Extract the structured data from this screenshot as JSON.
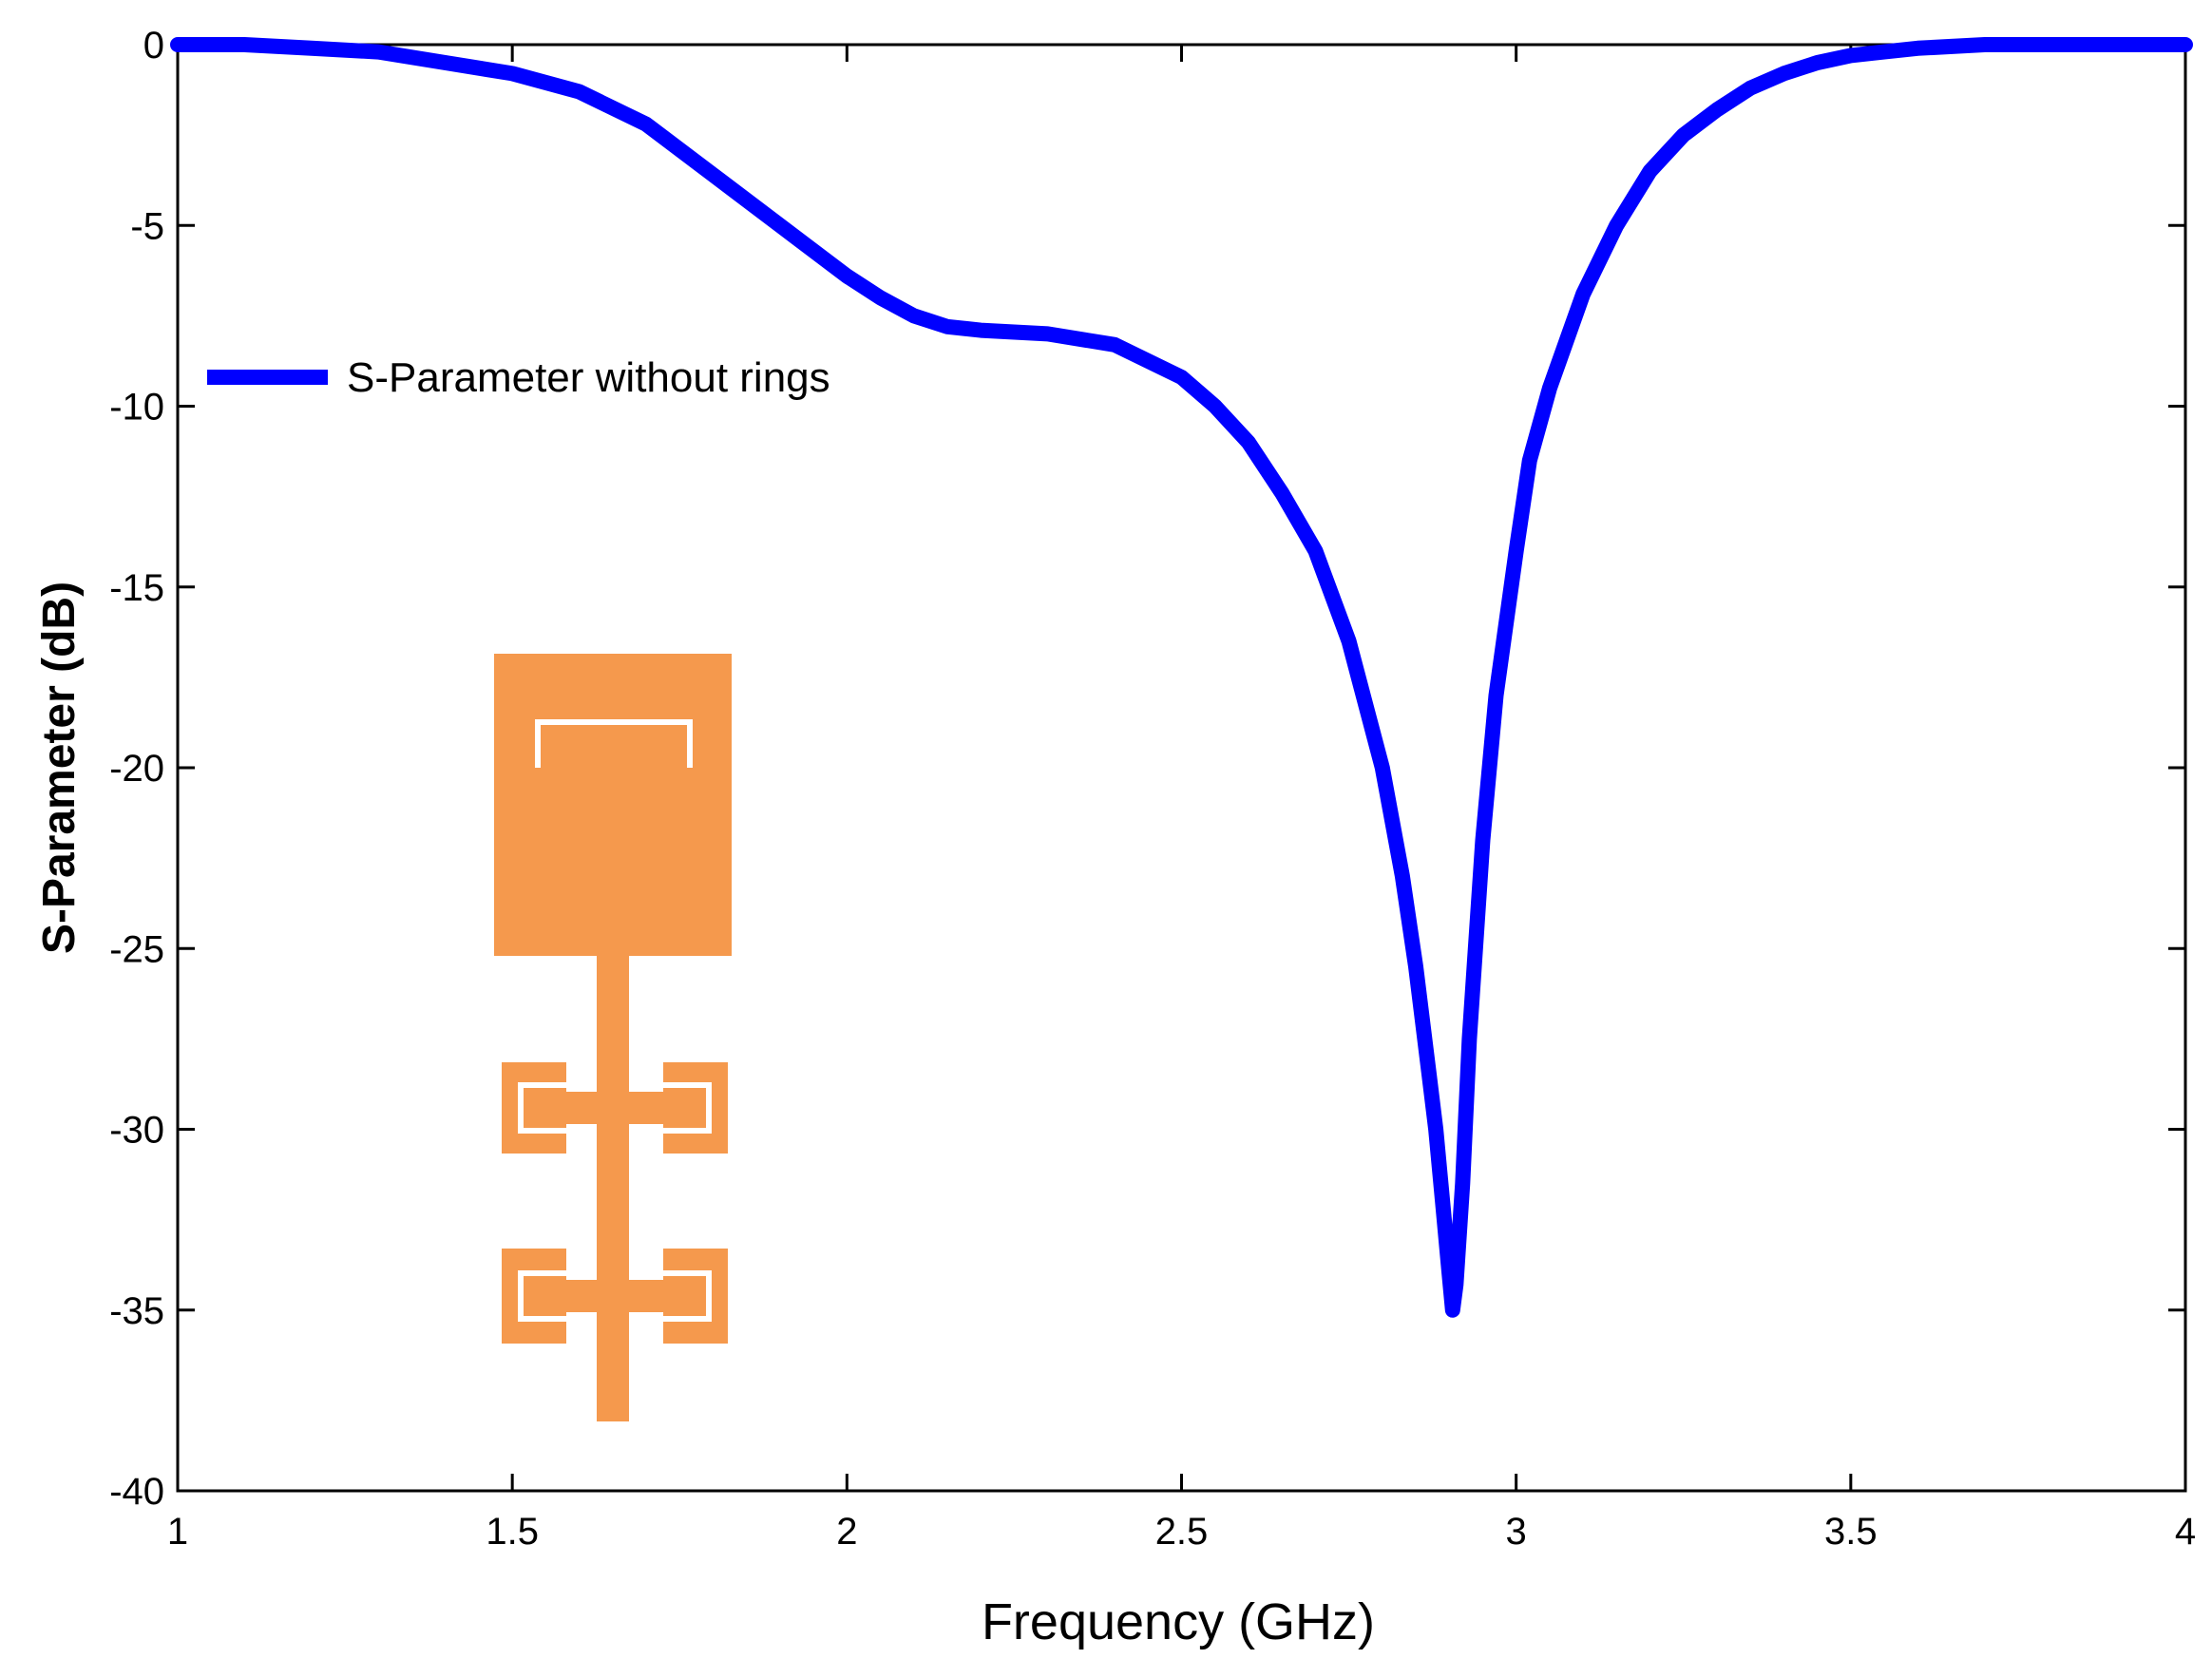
{
  "chart_data": {
    "type": "line",
    "title": "",
    "xlabel": "Frequency (GHz)",
    "ylabel": "S-Parameter (dB)",
    "xlim": [
      1,
      4
    ],
    "ylim": [
      -40,
      0
    ],
    "xticks": [
      1,
      1.5,
      2,
      2.5,
      3,
      3.5,
      4
    ],
    "xtick_labels": [
      "1",
      "1.5",
      "2",
      "2.5",
      "3",
      "3.5",
      "4"
    ],
    "yticks": [
      0,
      -5,
      -10,
      -15,
      -20,
      -25,
      -30,
      -35,
      -40
    ],
    "ytick_labels": [
      "0",
      "-5",
      "-10",
      "-15",
      "-20",
      "-25",
      "-30",
      "-35",
      "-40"
    ],
    "grid": false,
    "legend_position": "upper-left",
    "series": [
      {
        "name": "S-Parameter without rings",
        "color": "#0000ff",
        "x": [
          1.0,
          1.1,
          1.2,
          1.3,
          1.4,
          1.5,
          1.6,
          1.7,
          1.8,
          1.9,
          2.0,
          2.05,
          2.1,
          2.15,
          2.2,
          2.3,
          2.4,
          2.5,
          2.55,
          2.6,
          2.65,
          2.7,
          2.75,
          2.8,
          2.83,
          2.85,
          2.87,
          2.88,
          2.89,
          2.9,
          2.905,
          2.91,
          2.92,
          2.93,
          2.95,
          2.97,
          3.0,
          3.02,
          3.05,
          3.1,
          3.15,
          3.2,
          3.25,
          3.3,
          3.35,
          3.4,
          3.45,
          3.5,
          3.55,
          3.6,
          3.7,
          3.8,
          3.9,
          4.0
        ],
        "y": [
          0,
          0,
          -0.1,
          -0.2,
          -0.5,
          -0.8,
          -1.3,
          -2.2,
          -3.6,
          -5.0,
          -6.4,
          -7.0,
          -7.5,
          -7.8,
          -7.9,
          -8.0,
          -8.3,
          -9.2,
          -10.0,
          -11.0,
          -12.4,
          -14.0,
          -16.5,
          -20.0,
          -23.0,
          -25.5,
          -28.5,
          -30.0,
          -32.0,
          -34.0,
          -35.0,
          -34.3,
          -31.5,
          -27.5,
          -22.0,
          -18.0,
          -14.0,
          -11.5,
          -9.5,
          -6.9,
          -5.0,
          -3.5,
          -2.5,
          -1.8,
          -1.2,
          -0.8,
          -0.5,
          -0.3,
          -0.2,
          -0.1,
          0,
          0,
          0,
          0
        ]
      }
    ],
    "inset": {
      "name": "antenna-structure-illustration",
      "color": "#f5994d"
    }
  }
}
